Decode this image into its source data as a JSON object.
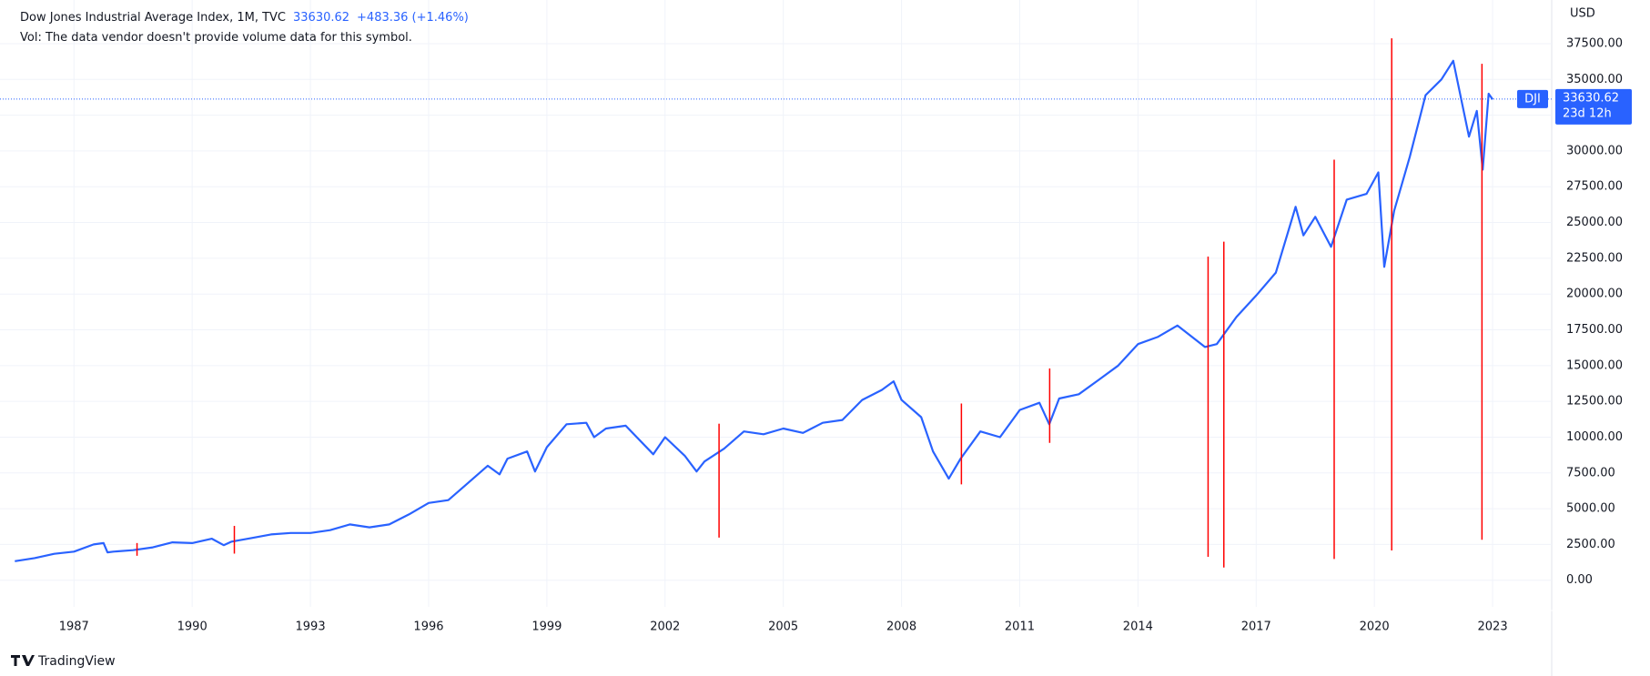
{
  "header": {
    "title": "Dow Jones Industrial Average Index, 1M, TVC",
    "change": "+483.36 (+1.46%)",
    "volume_note": "Vol: The data vendor doesn't provide volume data for this symbol."
  },
  "chart_data": {
    "type": "line",
    "x": [
      1985.5,
      1986,
      1986.5,
      1987,
      1987.5,
      1987.75,
      1987.85,
      1988,
      1988.5,
      1989,
      1989.5,
      1990,
      1990.5,
      1990.8,
      1991,
      1991.5,
      1992,
      1992.5,
      1993,
      1993.5,
      1994,
      1994.5,
      1995,
      1995.5,
      1996,
      1996.5,
      1997,
      1997.5,
      1997.8,
      1998,
      1998.5,
      1998.7,
      1999,
      1999.5,
      2000,
      2000.2,
      2000.5,
      2001,
      2001.7,
      2002,
      2002.5,
      2002.8,
      2003,
      2003.5,
      2004,
      2004.5,
      2005,
      2005.5,
      2006,
      2006.5,
      2007,
      2007.5,
      2007.8,
      2008,
      2008.5,
      2008.8,
      2009.2,
      2009.5,
      2010,
      2010.5,
      2011,
      2011.5,
      2011.75,
      2012,
      2012.5,
      2013,
      2013.5,
      2014,
      2014.5,
      2015,
      2015.7,
      2016,
      2016.5,
      2017,
      2017.5,
      2018,
      2018.2,
      2018.5,
      2018.9,
      2019.3,
      2019.8,
      2020.1,
      2020.25,
      2020.5,
      2020.9,
      2021.3,
      2021.7,
      2022,
      2022.4,
      2022.6,
      2022.75,
      2022.9,
      2023
    ],
    "series": [
      {
        "name": "DJI",
        "color": "#2962ff",
        "values": [
          1330,
          1550,
          1850,
          2000,
          2500,
          2600,
          1950,
          2000,
          2100,
          2300,
          2650,
          2600,
          2900,
          2450,
          2700,
          2950,
          3200,
          3300,
          3300,
          3500,
          3900,
          3700,
          3900,
          4600,
          5400,
          5600,
          6800,
          8000,
          7400,
          8500,
          9000,
          7600,
          9300,
          10900,
          11000,
          10000,
          10600,
          10800,
          8800,
          10000,
          8700,
          7600,
          8300,
          9200,
          10400,
          10200,
          10600,
          10300,
          11000,
          11200,
          12600,
          13300,
          13900,
          12600,
          11400,
          9000,
          7100,
          8500,
          10400,
          10000,
          11900,
          12400,
          10900,
          12700,
          13000,
          14000,
          15000,
          16500,
          17000,
          17800,
          16300,
          16500,
          18400,
          19900,
          21500,
          26100,
          24100,
          25400,
          23300,
          26600,
          27000,
          28500,
          21900,
          25800,
          29600,
          33900,
          35000,
          36300,
          31000,
          32800,
          28700,
          34000,
          33600
        ]
      }
    ],
    "last_price": 33630.62,
    "countdown": "23d 12h",
    "currency": "USD",
    "xlim": [
      1985.4,
      2024.5
    ],
    "ylim": [
      -1860,
      40550
    ],
    "xticks": [
      1987,
      1990,
      1993,
      1996,
      1999,
      2002,
      2005,
      2008,
      2011,
      2014,
      2017,
      2020,
      2023
    ],
    "yticks": [
      {
        "value": 0,
        "label": "0.00"
      },
      {
        "value": 2500,
        "label": "2500.00"
      },
      {
        "value": 5000,
        "label": "5000.00"
      },
      {
        "value": 7500,
        "label": "7500.00"
      },
      {
        "value": 10000,
        "label": "10000.00"
      },
      {
        "value": 12500,
        "label": "12500.00"
      },
      {
        "value": 15000,
        "label": "15000.00"
      },
      {
        "value": 17500,
        "label": "17500.00"
      },
      {
        "value": 20000,
        "label": "20000.00"
      },
      {
        "value": 22500,
        "label": "22500.00"
      },
      {
        "value": 25000,
        "label": "25000.00"
      },
      {
        "value": 27500,
        "label": "27500.00"
      },
      {
        "value": 30000,
        "label": "30000.00"
      },
      {
        "value": 32500,
        "label": "32500.00"
      },
      {
        "value": 35000,
        "label": "35000.00"
      },
      {
        "value": 37500,
        "label": "37500.00"
      }
    ],
    "markers": {
      "color": "#ff0000",
      "x": [
        1988.6,
        1991.07,
        2003.37,
        2009.52,
        2011.76,
        2015.78,
        2016.18,
        2018.98,
        2020.44,
        2022.73
      ],
      "low": [
        1710,
        1860,
        2980,
        6700,
        9600,
        1640,
        890,
        1490,
        2080,
        2830
      ],
      "high": [
        2600,
        3800,
        10940,
        12350,
        14800,
        22620,
        23660,
        29390,
        37870,
        36090
      ]
    },
    "grid": true
  },
  "footer": {
    "brand": "TradingView"
  }
}
